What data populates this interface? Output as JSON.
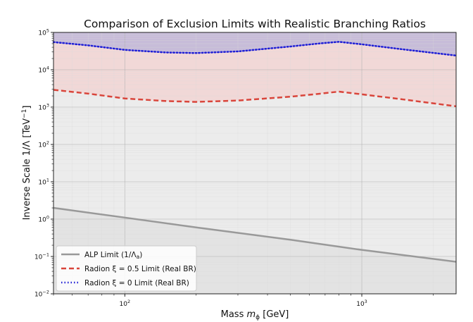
{
  "chart_data": {
    "type": "line",
    "title": "Comparison of Exclusion Limits with Realistic Branching Ratios",
    "xlabel": {
      "prefix": "Mass ",
      "var": "m",
      "sub": "ϕ",
      "unit": " [GeV]"
    },
    "ylabel": {
      "prefix": "Inverse Scale 1/Λ [TeV",
      "sup": "−1",
      "suffix": "]"
    },
    "x_scale": "log",
    "y_scale": "log",
    "xlim": [
      50,
      2500
    ],
    "ylim": [
      0.01,
      100000
    ],
    "x_ticks": [
      {
        "value": 100,
        "base": "10",
        "exp": "2"
      },
      {
        "value": 1000,
        "base": "10",
        "exp": "3"
      }
    ],
    "y_ticks": [
      {
        "value": 0.01,
        "base": "10",
        "exp": "−2"
      },
      {
        "value": 0.1,
        "base": "10",
        "exp": "−1"
      },
      {
        "value": 1,
        "base": "10",
        "exp": "0"
      },
      {
        "value": 10,
        "base": "10",
        "exp": "1"
      },
      {
        "value": 100,
        "base": "10",
        "exp": "2"
      },
      {
        "value": 1000,
        "base": "10",
        "exp": "3"
      },
      {
        "value": 10000,
        "base": "10",
        "exp": "4"
      },
      {
        "value": 100000,
        "base": "10",
        "exp": "5"
      }
    ],
    "grid": true,
    "legend_position": "lower-left",
    "series": [
      {
        "name": "ALP Limit (1/Λ",
        "name_sub": "a",
        "name_suffix": ")",
        "style": "solid",
        "color": "#999999",
        "fill": "#c8c8c8",
        "points": [
          [
            50,
            2.0
          ],
          [
            100,
            1.1
          ],
          [
            200,
            0.6
          ],
          [
            500,
            0.28
          ],
          [
            1000,
            0.15
          ],
          [
            2500,
            0.072
          ]
        ]
      },
      {
        "name": "Radion ξ = 0.5 Limit (Real BR)",
        "style": "dashed",
        "color": "#d9453b",
        "fill": "#e0a8a6",
        "points": [
          [
            50,
            2900
          ],
          [
            70,
            2300
          ],
          [
            100,
            1700
          ],
          [
            150,
            1450
          ],
          [
            200,
            1380
          ],
          [
            300,
            1500
          ],
          [
            500,
            1900
          ],
          [
            650,
            2250
          ],
          [
            800,
            2600
          ],
          [
            1000,
            2200
          ],
          [
            1500,
            1600
          ],
          [
            2500,
            1050
          ]
        ]
      },
      {
        "name": "Radion ξ = 0 Limit (Real BR)",
        "style": "dotted",
        "color": "#1f1fd6",
        "fill": "#b4a5cc",
        "points": [
          [
            50,
            55000
          ],
          [
            70,
            45000
          ],
          [
            100,
            34000
          ],
          [
            150,
            29000
          ],
          [
            200,
            28000
          ],
          [
            300,
            31000
          ],
          [
            500,
            42000
          ],
          [
            650,
            50000
          ],
          [
            800,
            56000
          ],
          [
            1000,
            48000
          ],
          [
            1500,
            35000
          ],
          [
            2500,
            24000
          ]
        ]
      }
    ]
  }
}
